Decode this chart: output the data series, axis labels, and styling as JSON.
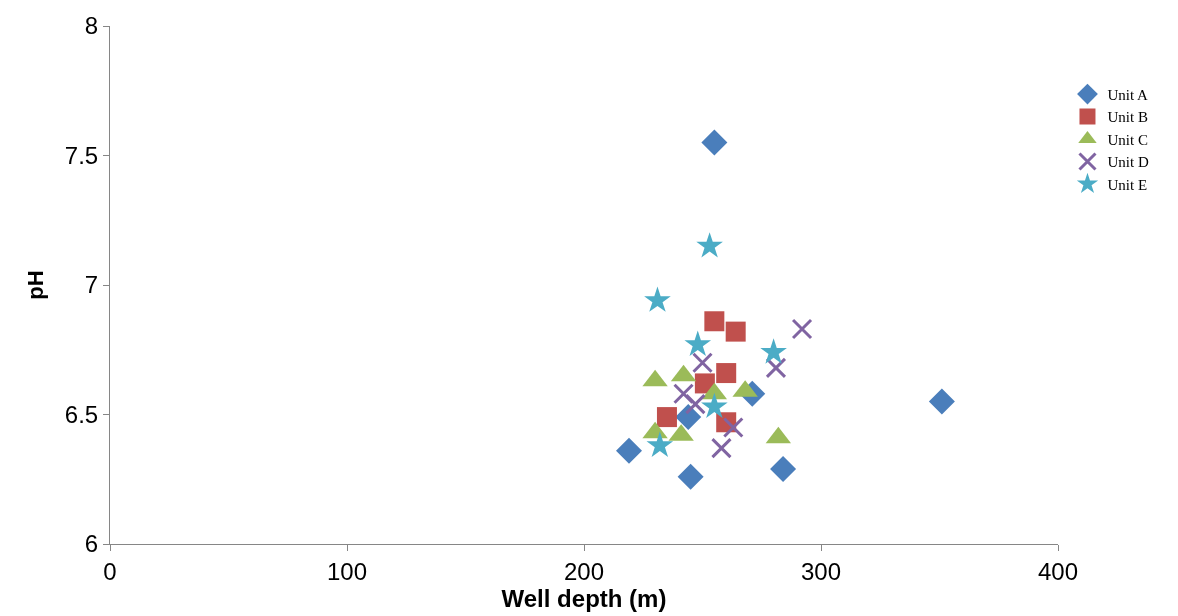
{
  "chart_data": {
    "type": "scatter",
    "xlabel": "Well depth (m)",
    "ylabel": "pH",
    "xlim": [
      0,
      400
    ],
    "xticks": [
      0,
      100,
      200,
      300,
      400
    ],
    "ylim": [
      6,
      8
    ],
    "yticks": [
      6,
      6.5,
      7,
      7.5,
      8
    ],
    "legend": "right",
    "series": [
      {
        "name": "Unit A",
        "color": "#4a7ebb",
        "marker": "diamond",
        "x": [
          219,
          245,
          284,
          271,
          244,
          255,
          351
        ],
        "values": [
          6.36,
          6.26,
          6.29,
          6.58,
          6.49,
          7.55,
          6.55
        ]
      },
      {
        "name": "Unit B",
        "color": "#c0504d",
        "marker": "square",
        "x": [
          255,
          264,
          260,
          235,
          260,
          251
        ],
        "values": [
          6.86,
          6.82,
          6.66,
          6.49,
          6.47,
          6.62
        ]
      },
      {
        "name": "Unit C",
        "color": "#9bbb59",
        "marker": "triangle",
        "x": [
          230,
          242,
          255,
          268,
          230,
          241,
          282
        ],
        "values": [
          6.63,
          6.65,
          6.58,
          6.59,
          6.43,
          6.42,
          6.41
        ]
      },
      {
        "name": "Unit D",
        "color": "#8064a2",
        "marker": "cross",
        "x": [
          292,
          281,
          250,
          242,
          247,
          263,
          258
        ],
        "values": [
          6.83,
          6.68,
          6.7,
          6.58,
          6.54,
          6.45,
          6.37
        ]
      },
      {
        "name": "Unit E",
        "color": "#4bacc6",
        "marker": "star",
        "x": [
          253,
          231,
          248,
          280,
          255,
          232
        ],
        "values": [
          7.15,
          6.94,
          6.77,
          6.74,
          6.53,
          6.38
        ]
      }
    ]
  }
}
